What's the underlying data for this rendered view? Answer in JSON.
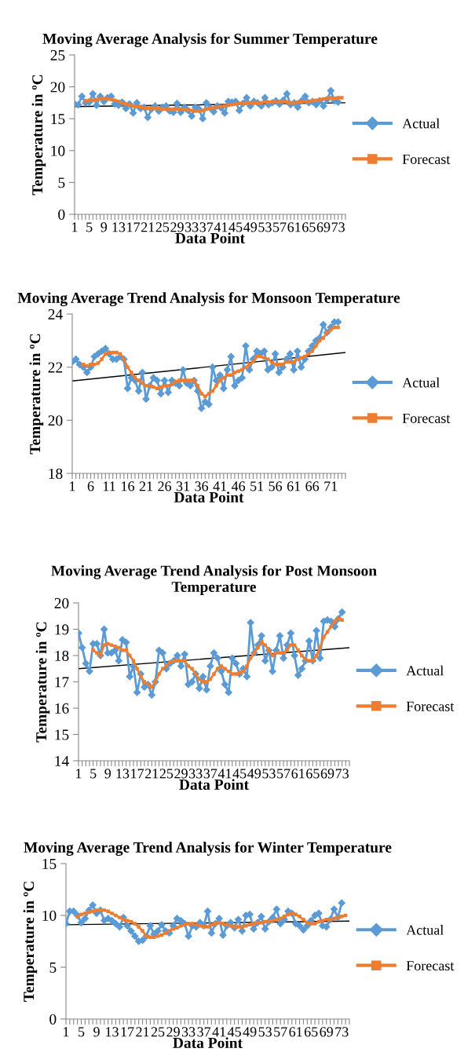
{
  "chart_data": [
    {
      "type": "line",
      "title": "Moving Average Analysis for Summer Temperature",
      "xlabel": "Data Point",
      "ylabel": "Temperature in ºC",
      "categories": [
        "1",
        null,
        null,
        null,
        "5",
        null,
        null,
        null,
        "9",
        null,
        null,
        null,
        "13",
        null,
        null,
        null,
        "17",
        null,
        null,
        null,
        "21",
        null,
        null,
        null,
        "25",
        null,
        null,
        null,
        "29",
        null,
        null,
        null,
        "33",
        null,
        null,
        null,
        "37",
        null,
        null,
        null,
        "41",
        null,
        null,
        null,
        "45",
        null,
        null,
        null,
        "49",
        null,
        null,
        null,
        "53",
        null,
        null,
        null,
        "57",
        null,
        null,
        null,
        "61",
        null,
        null,
        null,
        "65",
        null,
        null,
        null,
        "69",
        null,
        null,
        null,
        "73",
        null,
        null
      ],
      "ylim": [
        0,
        25
      ],
      "yticks": [
        0,
        5,
        10,
        15,
        20,
        25
      ],
      "grid": false,
      "legend": "right",
      "series": [
        {
          "name": "Actual",
          "color": "#5b9bd5",
          "marker": "diamond",
          "values": [
            17.3,
            17.2,
            18.5,
            17.5,
            17.6,
            18.9,
            17.1,
            18.5,
            17.7,
            18.3,
            18.5,
            17.3,
            17.1,
            17.6,
            16.6,
            17.3,
            15.9,
            17.5,
            16.6,
            16.8,
            15.2,
            16.5,
            17.0,
            16.2,
            16.8,
            17.0,
            16.2,
            16.0,
            17.4,
            16.0,
            16.8,
            16.3,
            15.4,
            16.8,
            16.5,
            15.0,
            17.5,
            16.7,
            16.1,
            17.0,
            16.7,
            15.9,
            17.7,
            17.6,
            17.7,
            16.3,
            17.4,
            18.3,
            17.0,
            17.7,
            17.5,
            17.0,
            18.3,
            17.2,
            17.5,
            17.8,
            17.3,
            17.9,
            18.9,
            17.2,
            17.5,
            16.8,
            17.8,
            18.5,
            17.5,
            17.7,
            17.2,
            17.8,
            17.0,
            18.0,
            19.4,
            17.8,
            17.6,
            null,
            null
          ]
        },
        {
          "name": "Forecast",
          "color": "#ed7d31",
          "marker": "square",
          "values": [
            null,
            null,
            null,
            17.8,
            17.9,
            17.9,
            18.0,
            18.1,
            18.1,
            18.1,
            18.0,
            17.9,
            17.7,
            17.5,
            17.3,
            17.1,
            17.0,
            16.9,
            16.8,
            16.7,
            16.6,
            16.6,
            16.6,
            16.6,
            16.5,
            16.5,
            16.5,
            16.5,
            16.5,
            16.5,
            16.4,
            16.4,
            16.3,
            16.2,
            16.2,
            16.3,
            16.5,
            16.6,
            16.7,
            16.8,
            16.9,
            17.0,
            17.1,
            17.2,
            17.3,
            17.4,
            17.4,
            17.5,
            17.5,
            17.5,
            17.5,
            17.5,
            17.6,
            17.6,
            17.6,
            17.7,
            17.7,
            17.7,
            17.6,
            17.5,
            17.5,
            17.6,
            17.6,
            17.7,
            17.7,
            17.8,
            17.9,
            18.0,
            18.1,
            18.2,
            18.3,
            18.2,
            18.3,
            18.3,
            null
          ]
        },
        {
          "color": "#000000",
          "marker": "none",
          "values": [
            16.9,
            null,
            null,
            null,
            null,
            null,
            null,
            null,
            null,
            null,
            null,
            null,
            null,
            null,
            null,
            null,
            null,
            null,
            null,
            null,
            null,
            null,
            null,
            null,
            null,
            null,
            null,
            null,
            null,
            null,
            null,
            null,
            null,
            null,
            null,
            null,
            null,
            null,
            null,
            null,
            null,
            null,
            null,
            null,
            null,
            null,
            null,
            null,
            null,
            null,
            null,
            null,
            null,
            null,
            null,
            null,
            null,
            null,
            null,
            null,
            null,
            null,
            null,
            null,
            null,
            null,
            null,
            null,
            null,
            null,
            null,
            null,
            null,
            null,
            17.5
          ]
        }
      ]
    },
    {
      "type": "line",
      "title": "Moving Average Trend Analysis for Monsoon Temperature",
      "xlabel": "Data Point",
      "ylabel": "Temperature in ºC",
      "categories": [
        "1",
        null,
        null,
        null,
        null,
        "6",
        null,
        null,
        null,
        null,
        "11",
        null,
        null,
        null,
        null,
        "16",
        null,
        null,
        null,
        null,
        "21",
        null,
        null,
        null,
        null,
        "26",
        null,
        null,
        null,
        null,
        "31",
        null,
        null,
        null,
        null,
        "36",
        null,
        null,
        null,
        null,
        "41",
        null,
        null,
        null,
        null,
        "46",
        null,
        null,
        null,
        null,
        "51",
        null,
        null,
        null,
        null,
        "56",
        null,
        null,
        null,
        null,
        "61",
        null,
        null,
        null,
        null,
        "66",
        null,
        null,
        null,
        null,
        "71",
        null,
        null,
        null,
        null
      ],
      "ylim": [
        18,
        24
      ],
      "yticks": [
        18,
        20,
        22,
        24
      ],
      "grid": false,
      "legend": "right",
      "series": [
        {
          "name": "Actual",
          "color": "#5b9bd5",
          "marker": "diamond",
          "values": [
            22.2,
            22.3,
            22.1,
            22.0,
            21.8,
            22.0,
            22.4,
            22.5,
            22.6,
            22.7,
            22.5,
            22.3,
            22.3,
            22.4,
            22.3,
            21.2,
            21.6,
            21.5,
            21.1,
            21.8,
            20.8,
            21.3,
            21.6,
            21.5,
            21.0,
            21.5,
            21.05,
            21.5,
            21.4,
            21.3,
            21.9,
            21.4,
            21.3,
            21.5,
            21.1,
            20.45,
            20.7,
            20.6,
            22.0,
            21.5,
            21.7,
            21.2,
            21.9,
            22.4,
            21.3,
            21.5,
            21.6,
            22.8,
            21.9,
            22.3,
            22.6,
            22.5,
            22.6,
            21.9,
            22.0,
            22.5,
            21.8,
            22.0,
            22.3,
            22.5,
            21.9,
            22.6,
            22.0,
            22.3,
            22.6,
            22.8,
            23.0,
            23.1,
            23.6,
            23.3,
            23.5,
            23.7,
            23.7,
            null,
            null
          ]
        },
        {
          "name": "Forecast",
          "color": "#ed7d31",
          "marker": "square",
          "values": [
            null,
            null,
            null,
            22.1,
            22.05,
            22.1,
            22.1,
            22.15,
            22.3,
            22.5,
            22.55,
            22.55,
            22.55,
            22.5,
            22.3,
            22.0,
            21.8,
            21.6,
            21.5,
            21.4,
            21.3,
            21.3,
            21.25,
            21.2,
            21.25,
            21.3,
            21.3,
            21.35,
            21.45,
            21.5,
            21.5,
            21.5,
            21.5,
            21.5,
            21.3,
            21.0,
            20.9,
            21.0,
            21.1,
            21.3,
            21.5,
            21.6,
            21.7,
            21.7,
            21.8,
            21.85,
            21.9,
            22.0,
            22.1,
            22.2,
            22.4,
            22.4,
            22.35,
            22.3,
            22.2,
            22.1,
            22.1,
            22.1,
            22.2,
            22.2,
            22.2,
            22.3,
            22.35,
            22.4,
            22.5,
            22.6,
            22.8,
            23.0,
            23.1,
            23.3,
            23.4,
            23.5,
            23.5,
            null,
            null
          ]
        },
        {
          "color": "#000000",
          "marker": "none",
          "values": [
            21.48,
            null,
            null,
            null,
            null,
            null,
            null,
            null,
            null,
            null,
            null,
            null,
            null,
            null,
            null,
            null,
            null,
            null,
            null,
            null,
            null,
            null,
            null,
            null,
            null,
            null,
            null,
            null,
            null,
            null,
            null,
            null,
            null,
            null,
            null,
            null,
            null,
            null,
            null,
            null,
            null,
            null,
            null,
            null,
            null,
            null,
            null,
            null,
            null,
            null,
            null,
            null,
            null,
            null,
            null,
            null,
            null,
            null,
            null,
            null,
            null,
            null,
            null,
            null,
            null,
            null,
            null,
            null,
            null,
            null,
            null,
            null,
            null,
            null,
            22.55
          ]
        }
      ]
    },
    {
      "type": "line",
      "title": "Moving Average Trend Analysis for Post Monsoon Temperature",
      "xlabel": "Data Point",
      "ylabel": "Temperature in ºC",
      "categories": [
        "1",
        null,
        null,
        null,
        "5",
        null,
        null,
        null,
        "9",
        null,
        null,
        null,
        "13",
        null,
        null,
        null,
        "17",
        null,
        null,
        null,
        "21",
        null,
        null,
        null,
        "25",
        null,
        null,
        null,
        "29",
        null,
        null,
        null,
        "33",
        null,
        null,
        null,
        "37",
        null,
        null,
        null,
        "41",
        null,
        null,
        null,
        "45",
        null,
        null,
        null,
        "49",
        null,
        null,
        null,
        "53",
        null,
        null,
        null,
        "57",
        null,
        null,
        null,
        "61",
        null,
        null,
        null,
        "65",
        null,
        null,
        null,
        "69",
        null,
        null,
        null,
        "73",
        null,
        null
      ],
      "ylim": [
        14,
        20
      ],
      "yticks": [
        14,
        15,
        16,
        17,
        18,
        19,
        20
      ],
      "grid": false,
      "legend": "right",
      "series": [
        {
          "name": "Actual",
          "color": "#5b9bd5",
          "marker": "diamond",
          "values": [
            18.85,
            18.3,
            17.7,
            17.4,
            18.45,
            18.45,
            18.0,
            19.0,
            18.1,
            18.1,
            18.2,
            17.8,
            18.6,
            18.5,
            17.2,
            17.6,
            16.6,
            17.3,
            16.8,
            16.9,
            16.5,
            17.0,
            18.2,
            18.1,
            17.5,
            17.7,
            17.8,
            18.0,
            17.6,
            18.05,
            16.9,
            17.0,
            17.3,
            16.75,
            17.2,
            16.7,
            17.6,
            18.1,
            17.9,
            17.4,
            16.9,
            16.6,
            17.9,
            17.7,
            17.3,
            17.5,
            17.2,
            19.25,
            18.1,
            18.4,
            18.75,
            17.8,
            18.2,
            17.4,
            18.2,
            18.75,
            17.9,
            18.4,
            18.85,
            18.0,
            17.25,
            17.5,
            17.8,
            18.55,
            17.8,
            18.95,
            17.9,
            19.3,
            19.35,
            19.3,
            19.1,
            19.4,
            19.65,
            null,
            null
          ]
        },
        {
          "name": "Forecast",
          "color": "#ed7d31",
          "marker": "square",
          "values": [
            null,
            null,
            null,
            null,
            18.2,
            18.1,
            18.0,
            18.4,
            18.45,
            18.4,
            18.35,
            18.3,
            18.2,
            18.2,
            18.0,
            17.8,
            17.5,
            17.2,
            17.0,
            16.9,
            16.8,
            17.0,
            17.3,
            17.5,
            17.6,
            17.75,
            17.8,
            17.8,
            17.8,
            17.8,
            17.6,
            17.5,
            17.3,
            17.1,
            17.0,
            17.0,
            17.1,
            17.3,
            17.5,
            17.6,
            17.5,
            17.4,
            17.3,
            17.3,
            17.35,
            17.4,
            17.6,
            17.9,
            18.1,
            18.3,
            18.5,
            18.4,
            18.2,
            18.0,
            18.1,
            18.1,
            18.1,
            18.2,
            18.4,
            18.4,
            18.2,
            18.0,
            17.85,
            17.8,
            17.8,
            18.0,
            18.3,
            18.7,
            18.9,
            19.1,
            19.3,
            19.4,
            19.35,
            null,
            null
          ]
        },
        {
          "color": "#000000",
          "marker": "none",
          "values": [
            17.5,
            null,
            null,
            null,
            null,
            null,
            null,
            null,
            null,
            null,
            null,
            null,
            null,
            null,
            null,
            null,
            null,
            null,
            null,
            null,
            null,
            null,
            null,
            null,
            null,
            null,
            null,
            null,
            null,
            null,
            null,
            null,
            null,
            null,
            null,
            null,
            null,
            null,
            null,
            null,
            null,
            null,
            null,
            null,
            null,
            null,
            null,
            null,
            null,
            null,
            null,
            null,
            null,
            null,
            null,
            null,
            null,
            null,
            null,
            null,
            null,
            null,
            null,
            null,
            null,
            null,
            null,
            null,
            null,
            null,
            null,
            null,
            null,
            null,
            18.3
          ]
        }
      ]
    },
    {
      "type": "line",
      "title": "Moving Average Trend Analysis for Winter Temperature",
      "xlabel": "Data Point",
      "ylabel": "Temperature in ºC",
      "categories": [
        "1",
        null,
        null,
        null,
        "5",
        null,
        null,
        null,
        "9",
        null,
        null,
        null,
        "13",
        null,
        null,
        null,
        "17",
        null,
        null,
        null,
        "21",
        null,
        null,
        null,
        "25",
        null,
        null,
        null,
        "29",
        null,
        null,
        null,
        "33",
        null,
        null,
        null,
        "37",
        null,
        null,
        null,
        "41",
        null,
        null,
        null,
        "45",
        null,
        null,
        null,
        "49",
        null,
        null,
        null,
        "53",
        null,
        null,
        null,
        "57",
        null,
        null,
        null,
        "61",
        null,
        null,
        null,
        "65",
        null,
        null,
        null,
        "69",
        null,
        null,
        null,
        "73",
        null,
        null
      ],
      "ylim": [
        0,
        15
      ],
      "yticks": [
        0,
        5,
        10,
        15
      ],
      "grid": false,
      "legend": "right",
      "series": [
        {
          "name": "Actual",
          "color": "#5b9bd5",
          "marker": "diamond",
          "values": [
            9.2,
            10.4,
            10.4,
            10.0,
            9.3,
            9.7,
            10.5,
            11.0,
            10.2,
            10.5,
            9.5,
            9.7,
            9.5,
            9.2,
            8.9,
            9.8,
            9.0,
            8.5,
            8.0,
            7.5,
            7.6,
            8.0,
            9.0,
            8.2,
            8.5,
            9.1,
            8.5,
            8.3,
            9.0,
            9.7,
            9.5,
            9.2,
            8.0,
            9.0,
            8.9,
            9.3,
            9.0,
            10.4,
            8.3,
            9.2,
            9.7,
            8.1,
            9.0,
            9.3,
            8.8,
            9.6,
            8.5,
            10.0,
            10.1,
            8.7,
            9.3,
            9.9,
            8.7,
            9.4,
            9.8,
            10.6,
            9.2,
            9.6,
            10.4,
            10.2,
            9.2,
            9.0,
            8.6,
            9.0,
            9.5,
            10.0,
            10.2,
            9.0,
            8.9,
            9.6,
            10.6,
            9.8,
            11.2,
            null,
            null
          ]
        },
        {
          "name": "Forecast",
          "color": "#ed7d31",
          "marker": "square",
          "values": [
            null,
            null,
            null,
            9.9,
            10.1,
            10.2,
            10.3,
            10.4,
            10.5,
            10.5,
            10.5,
            10.4,
            10.2,
            10.0,
            9.8,
            9.6,
            9.5,
            9.4,
            9.2,
            8.9,
            8.5,
            8.0,
            7.9,
            7.9,
            8.0,
            8.1,
            8.3,
            8.5,
            8.7,
            8.8,
            9.0,
            9.1,
            9.2,
            9.2,
            9.1,
            9.0,
            8.9,
            8.9,
            9.1,
            9.2,
            9.3,
            9.2,
            9.1,
            9.0,
            8.9,
            8.9,
            8.9,
            9.0,
            9.1,
            9.2,
            9.3,
            9.3,
            9.4,
            9.4,
            9.5,
            9.6,
            9.7,
            9.9,
            10.1,
            10.2,
            10.1,
            9.9,
            9.6,
            9.3,
            9.2,
            9.2,
            9.4,
            9.5,
            9.6,
            9.6,
            9.7,
            9.8,
            9.9,
            10.0,
            null
          ]
        },
        {
          "color": "#000000",
          "marker": "none",
          "values": [
            9.1,
            null,
            null,
            null,
            null,
            null,
            null,
            null,
            null,
            null,
            null,
            null,
            null,
            null,
            null,
            null,
            null,
            null,
            null,
            null,
            null,
            null,
            null,
            null,
            null,
            null,
            null,
            null,
            null,
            null,
            null,
            null,
            null,
            null,
            null,
            null,
            null,
            null,
            null,
            null,
            null,
            null,
            null,
            null,
            null,
            null,
            null,
            null,
            null,
            null,
            null,
            null,
            null,
            null,
            null,
            null,
            null,
            null,
            null,
            null,
            null,
            null,
            null,
            null,
            null,
            null,
            null,
            null,
            null,
            null,
            null,
            null,
            null,
            null,
            9.45
          ]
        }
      ]
    }
  ]
}
